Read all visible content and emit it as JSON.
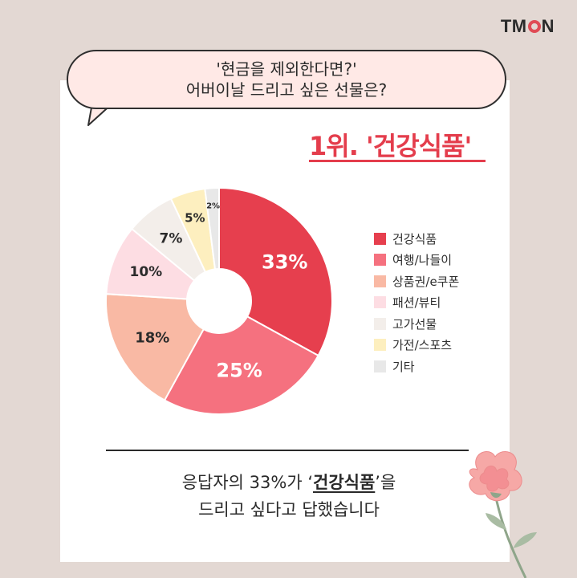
{
  "brand": {
    "logo_prefix": "TM",
    "logo_suffix": "N"
  },
  "bubble": {
    "line1": "'현금을 제외한다면?'",
    "line2": "어버이날 드리고 싶은 선물은?"
  },
  "headline": "1위. '건강식품'",
  "caption": {
    "part1": "응답자의 33%가 ",
    "quote_open": "‘",
    "highlight": "건강식품",
    "quote_close": "’을",
    "line2": "드리고 싶다고 답했습니다"
  },
  "chart_data": {
    "type": "pie",
    "donut": true,
    "categories": [
      "건강식품",
      "여행/나들이",
      "상품권/e쿠폰",
      "패션/뷰티",
      "고가선물",
      "가전/스포츠",
      "기타"
    ],
    "values": [
      33,
      25,
      18,
      10,
      7,
      5,
      2
    ],
    "labels": [
      "33%",
      "25%",
      "18%",
      "10%",
      "7%",
      "5%",
      "2%"
    ],
    "colors": [
      "#e63f4e",
      "#f5717f",
      "#f9b9a4",
      "#fddde3",
      "#f3eeea",
      "#fdefbf",
      "#e8e8e8"
    ],
    "label_colors": [
      "#ffffff",
      "#ffffff",
      "#2b2b2b",
      "#2b2b2b",
      "#2b2b2b",
      "#2b2b2b",
      "#2b2b2b"
    ],
    "legend_position": "right"
  }
}
